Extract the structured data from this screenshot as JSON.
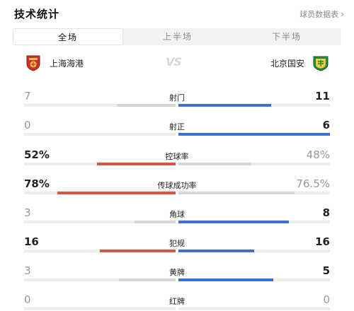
{
  "header": {
    "title": "技术统计",
    "player_link": "球员数据表",
    "player_link_icon": "chevron-right-icon"
  },
  "tabs": [
    {
      "label": "全场",
      "active": true
    },
    {
      "label": "上半场",
      "active": false
    },
    {
      "label": "下半场",
      "active": false
    }
  ],
  "teams": {
    "home": {
      "name": "上海海港",
      "badge_icon": "shanghai-port-badge"
    },
    "away": {
      "name": "北京国安",
      "badge_icon": "beijing-guoan-badge"
    },
    "vs_text": "VS"
  },
  "colors": {
    "home_lead": "#d95444",
    "away_lead": "#3f6fd1",
    "trail": "#d6d6d6",
    "track": "#ececec"
  },
  "stats": [
    {
      "label": "射门",
      "home": "7",
      "away": "11",
      "home_frac": 0.389,
      "away_frac": 0.611,
      "home_dim": true,
      "away_dim": false
    },
    {
      "label": "射正",
      "home": "0",
      "away": "6",
      "home_frac": 0.0,
      "away_frac": 1.0,
      "home_dim": true,
      "away_dim": false
    },
    {
      "label": "控球率",
      "home": "52%",
      "away": "48%",
      "home_frac": 0.52,
      "away_frac": 0.48,
      "home_dim": false,
      "away_dim": true
    },
    {
      "label": "传球成功率",
      "home": "78%",
      "away": "76.5%",
      "home_frac": 0.78,
      "away_frac": 0.765,
      "home_dim": false,
      "away_dim": true
    },
    {
      "label": "角球",
      "home": "3",
      "away": "8",
      "home_frac": 0.273,
      "away_frac": 0.727,
      "home_dim": true,
      "away_dim": false
    },
    {
      "label": "犯规",
      "home": "16",
      "away": "16",
      "home_frac": 0.5,
      "away_frac": 0.5,
      "home_dim": false,
      "away_dim": false
    },
    {
      "label": "黄牌",
      "home": "3",
      "away": "5",
      "home_frac": 0.375,
      "away_frac": 0.625,
      "home_dim": true,
      "away_dim": false
    },
    {
      "label": "红牌",
      "home": "0",
      "away": "0",
      "home_frac": 0.0,
      "away_frac": 0.0,
      "home_dim": true,
      "away_dim": true
    }
  ]
}
